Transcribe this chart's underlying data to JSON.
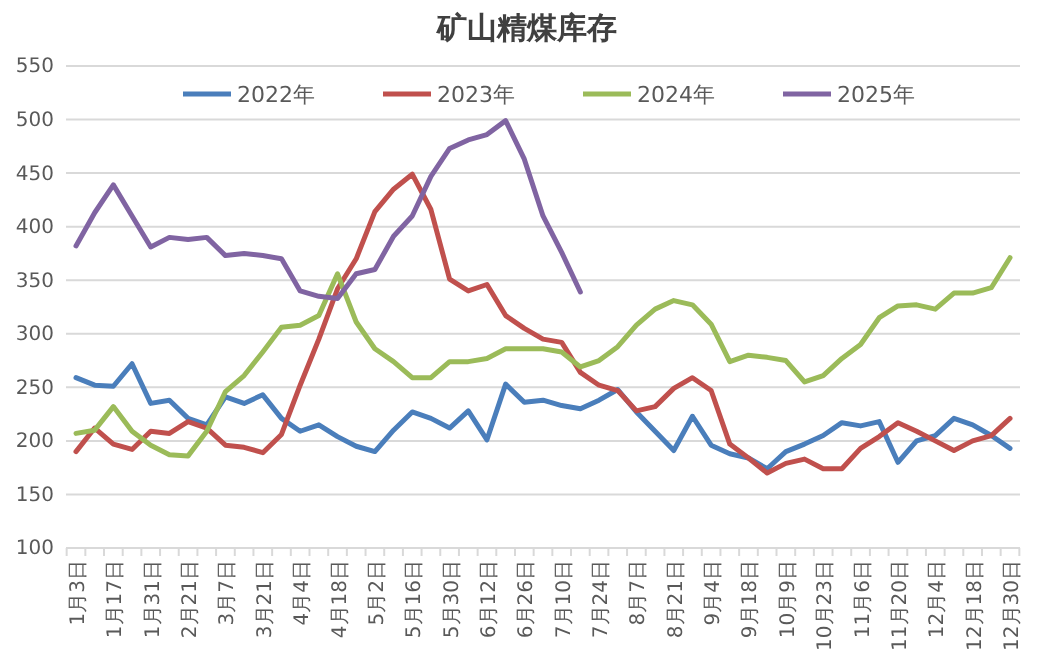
{
  "chart_data": {
    "type": "line",
    "title": "矿山精煤库存",
    "categories": [
      "1月3日",
      null,
      "1月17日",
      null,
      "1月31日",
      null,
      "2月21日",
      null,
      "3月7日",
      null,
      "3月21日",
      null,
      "4月4日",
      null,
      "4月18日",
      null,
      "5月2日",
      null,
      "5月16日",
      null,
      "5月30日",
      null,
      "6月12日",
      null,
      "6月26日",
      null,
      "7月10日",
      null,
      "7月24日",
      null,
      "8月7日",
      null,
      "8月21日",
      null,
      "9月4日",
      null,
      "9月18日",
      null,
      "10月9日",
      null,
      "10月23日",
      null,
      "11月6日",
      null,
      "11月20日",
      null,
      "12月4日",
      null,
      "12月18日",
      null,
      "12月30日"
    ],
    "series": [
      {
        "name": "2022年",
        "color": "#4a7ebb",
        "values": [
          259,
          252,
          251,
          272,
          235,
          238,
          221,
          215,
          241,
          235,
          243,
          221,
          209,
          215,
          204,
          195,
          190,
          210,
          227,
          221,
          212,
          228,
          201,
          253,
          236,
          238,
          233,
          230,
          238,
          248,
          227,
          209,
          191,
          223,
          196,
          188,
          184,
          174,
          190,
          197,
          205,
          217,
          214,
          218,
          180,
          200,
          205,
          221,
          215,
          205,
          193
        ]
      },
      {
        "name": "2023年",
        "color": "#c0504d",
        "values": [
          190,
          212,
          197,
          192,
          209,
          207,
          218,
          212,
          196,
          194,
          189,
          206,
          252,
          295,
          342,
          370,
          414,
          435,
          449,
          416,
          351,
          340,
          346,
          317,
          305,
          295,
          292,
          264,
          252,
          247,
          228,
          232,
          249,
          259,
          247,
          197,
          184,
          170,
          179,
          183,
          174,
          174,
          193,
          204,
          217,
          209,
          200,
          191,
          200,
          205,
          221
        ]
      },
      {
        "name": "2024年",
        "color": "#9bbb59",
        "values": [
          207,
          210,
          232,
          209,
          196,
          187,
          186,
          209,
          246,
          261,
          283,
          306,
          308,
          317,
          356,
          311,
          286,
          274,
          259,
          259,
          274,
          274,
          277,
          286,
          286,
          286,
          283,
          269,
          275,
          288,
          308,
          323,
          331,
          327,
          309,
          274,
          280,
          278,
          275,
          255,
          261,
          277,
          290,
          315,
          326,
          327,
          323,
          338,
          338,
          343,
          371
        ]
      },
      {
        "name": "2025年",
        "color": "#8064a2",
        "values": [
          382,
          413,
          439,
          410,
          381,
          390,
          388,
          390,
          373,
          375,
          373,
          370,
          340,
          335,
          333,
          356,
          360,
          391,
          410,
          447,
          473,
          481,
          486,
          499,
          463,
          410,
          376,
          339,
          null,
          null,
          null,
          null,
          null,
          null,
          null,
          null,
          null,
          null,
          null,
          null,
          null,
          null,
          null,
          null,
          null,
          null,
          null,
          null,
          null,
          null,
          null
        ]
      }
    ],
    "ylim": [
      100,
      550
    ],
    "yticks": [
      100,
      150,
      200,
      250,
      300,
      350,
      400,
      450,
      500,
      550
    ],
    "grid": "y",
    "legend": "top",
    "marker": "none",
    "line_style": "solid"
  }
}
